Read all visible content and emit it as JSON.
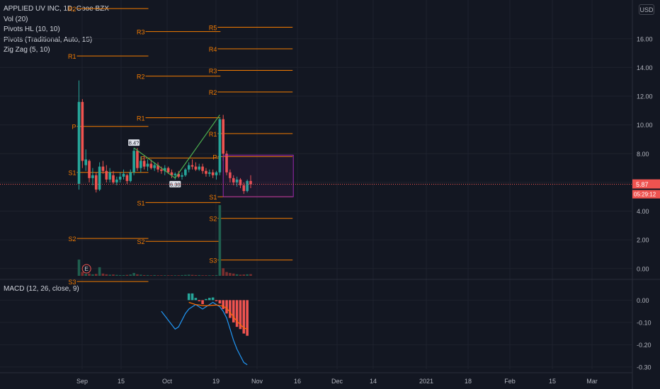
{
  "legend": {
    "symbol": "APPLIED UV INC, 1D, Cboe BZX",
    "vol": "Vol (20)",
    "pivots_hl": "Pivots HL (10, 10)",
    "pivots_trad": "Pivots (Traditional, Auto, 15)",
    "zigzag": "Zig Zag (5, 10)"
  },
  "macd_title": "MACD (12, 26, close, 9)",
  "currency": "USD",
  "price_tag": {
    "value": "5.87",
    "countdown": "05:29:12"
  },
  "colors": {
    "up": "#26a69a",
    "down": "#ef5350",
    "pivot": "#f57c00",
    "macd": "#2196f3",
    "signal": "#ff6d00",
    "zigzag": "#4caf50",
    "box": "#9c27b0"
  },
  "chart_data": [
    {
      "type": "candlestick",
      "ylim": [
        -0.7,
        18.6
      ],
      "x_ticks": [
        "Sep",
        "15",
        "Oct",
        "19",
        "Nov",
        "16",
        "Dec",
        "14",
        "2021",
        "18",
        "Feb",
        "15",
        "Mar"
      ],
      "y_ticks": [
        "16.00",
        "14.00",
        "12.00",
        "10.00",
        "8.00",
        "6.00",
        "4.00",
        "2.00",
        "0.00"
      ],
      "candles": [
        {
          "o": 5.9,
          "h": 13.1,
          "l": 5.5,
          "c": 11.6
        },
        {
          "o": 11.6,
          "h": 11.8,
          "l": 7.0,
          "c": 7.5
        },
        {
          "o": 7.2,
          "h": 8.3,
          "l": 6.8,
          "c": 7.6
        },
        {
          "o": 7.5,
          "h": 7.6,
          "l": 6.0,
          "c": 6.3
        },
        {
          "o": 6.3,
          "h": 7.0,
          "l": 5.8,
          "c": 6.5
        },
        {
          "o": 6.5,
          "h": 6.7,
          "l": 5.3,
          "c": 5.5
        },
        {
          "o": 5.5,
          "h": 7.4,
          "l": 5.4,
          "c": 7.1
        },
        {
          "o": 7.1,
          "h": 7.5,
          "l": 6.6,
          "c": 6.8
        },
        {
          "o": 6.8,
          "h": 7.2,
          "l": 6.0,
          "c": 6.2
        },
        {
          "o": 6.2,
          "h": 7.0,
          "l": 6.0,
          "c": 6.7
        },
        {
          "o": 6.5,
          "h": 6.8,
          "l": 5.9,
          "c": 6.0
        },
        {
          "o": 6.0,
          "h": 6.4,
          "l": 5.8,
          "c": 6.2
        },
        {
          "o": 6.2,
          "h": 6.7,
          "l": 6.0,
          "c": 6.4
        },
        {
          "o": 6.4,
          "h": 6.9,
          "l": 6.2,
          "c": 6.6
        },
        {
          "o": 6.5,
          "h": 6.6,
          "l": 5.9,
          "c": 6.1
        },
        {
          "o": 6.1,
          "h": 6.9,
          "l": 6.0,
          "c": 6.7
        },
        {
          "o": 6.7,
          "h": 8.4,
          "l": 6.5,
          "c": 8.2
        },
        {
          "o": 8.2,
          "h": 8.4,
          "l": 6.8,
          "c": 7.0
        },
        {
          "o": 7.0,
          "h": 7.8,
          "l": 6.7,
          "c": 7.5
        },
        {
          "o": 7.5,
          "h": 7.9,
          "l": 6.9,
          "c": 7.1
        },
        {
          "o": 7.1,
          "h": 7.6,
          "l": 6.8,
          "c": 7.3
        },
        {
          "o": 7.3,
          "h": 7.6,
          "l": 6.9,
          "c": 7.0
        },
        {
          "o": 7.0,
          "h": 7.4,
          "l": 6.8,
          "c": 7.2
        },
        {
          "o": 7.2,
          "h": 7.4,
          "l": 6.7,
          "c": 6.9
        },
        {
          "o": 6.9,
          "h": 7.1,
          "l": 6.6,
          "c": 6.8
        },
        {
          "o": 6.8,
          "h": 7.2,
          "l": 6.5,
          "c": 7.0
        },
        {
          "o": 7.0,
          "h": 7.1,
          "l": 6.6,
          "c": 6.7
        },
        {
          "o": 6.7,
          "h": 6.9,
          "l": 6.3,
          "c": 6.5
        },
        {
          "o": 6.5,
          "h": 6.7,
          "l": 6.2,
          "c": 6.6
        },
        {
          "o": 6.6,
          "h": 6.8,
          "l": 6.3,
          "c": 6.4
        },
        {
          "o": 6.4,
          "h": 6.7,
          "l": 6.2,
          "c": 6.5
        },
        {
          "o": 6.5,
          "h": 7.0,
          "l": 6.4,
          "c": 6.9
        },
        {
          "o": 6.9,
          "h": 7.4,
          "l": 6.7,
          "c": 7.2
        },
        {
          "o": 7.2,
          "h": 7.6,
          "l": 6.9,
          "c": 7.1
        },
        {
          "o": 7.1,
          "h": 7.4,
          "l": 6.8,
          "c": 6.9
        },
        {
          "o": 6.9,
          "h": 7.3,
          "l": 6.8,
          "c": 7.1
        },
        {
          "o": 7.1,
          "h": 7.3,
          "l": 6.6,
          "c": 6.8
        },
        {
          "o": 6.8,
          "h": 7.0,
          "l": 6.4,
          "c": 6.6
        },
        {
          "o": 6.6,
          "h": 6.9,
          "l": 6.4,
          "c": 6.7
        },
        {
          "o": 6.7,
          "h": 6.9,
          "l": 6.3,
          "c": 6.5
        },
        {
          "o": 6.5,
          "h": 6.8,
          "l": 6.2,
          "c": 6.7
        },
        {
          "o": 6.7,
          "h": 10.5,
          "l": 6.5,
          "c": 10.4
        },
        {
          "o": 10.4,
          "h": 10.7,
          "l": 7.5,
          "c": 8.0
        },
        {
          "o": 8.0,
          "h": 8.2,
          "l": 6.5,
          "c": 6.7
        },
        {
          "o": 6.7,
          "h": 6.9,
          "l": 6.0,
          "c": 6.3
        },
        {
          "o": 6.3,
          "h": 6.5,
          "l": 5.8,
          "c": 6.0
        },
        {
          "o": 6.0,
          "h": 6.4,
          "l": 5.7,
          "c": 6.2
        },
        {
          "o": 6.2,
          "h": 6.3,
          "l": 5.6,
          "c": 5.8
        },
        {
          "o": 5.8,
          "h": 6.0,
          "l": 5.2,
          "c": 5.4
        },
        {
          "o": 5.4,
          "h": 6.2,
          "l": 5.3,
          "c": 6.1
        },
        {
          "o": 6.1,
          "h": 6.5,
          "l": 5.6,
          "c": 5.87
        }
      ],
      "volume": [
        0.85,
        0.2,
        0.1,
        0.12,
        0.08,
        0.1,
        0.45,
        0.12,
        0.08,
        0.06,
        0.07,
        0.05,
        0.04,
        0.04,
        0.05,
        0.07,
        0.15,
        0.08,
        0.06,
        0.04,
        0.04,
        0.03,
        0.04,
        0.03,
        0.03,
        0.03,
        0.03,
        0.03,
        0.03,
        0.03,
        0.04,
        0.05,
        0.06,
        0.05,
        0.04,
        0.04,
        0.03,
        0.03,
        0.03,
        0.03,
        0.04,
        3.7,
        0.4,
        0.2,
        0.15,
        0.12,
        0.08,
        0.06,
        0.07,
        0.08,
        0.09
      ],
      "pivot_levels": [
        {
          "label": "R2",
          "x0": 0,
          "x1": 20,
          "y": 18.1
        },
        {
          "label": "R1",
          "x0": 0,
          "x1": 20,
          "y": 14.8
        },
        {
          "label": "P",
          "x0": 0,
          "x1": 20,
          "y": 9.9
        },
        {
          "label": "S1",
          "x0": 0,
          "x1": 20,
          "y": 6.7
        },
        {
          "label": "S2",
          "x0": 0,
          "x1": 20,
          "y": 2.1
        },
        {
          "label": "S3",
          "x0": 0,
          "x1": 20,
          "y": -0.9
        },
        {
          "label": "R3",
          "x0": 20,
          "x1": 41,
          "y": 16.5
        },
        {
          "label": "R2",
          "x0": 20,
          "x1": 41,
          "y": 13.4
        },
        {
          "label": "R1",
          "x0": 20,
          "x1": 41,
          "y": 10.5
        },
        {
          "label": "P",
          "x0": 20,
          "x1": 41,
          "y": 7.7
        },
        {
          "label": "S1",
          "x0": 20,
          "x1": 41,
          "y": 4.6
        },
        {
          "label": "S2",
          "x0": 20,
          "x1": 41,
          "y": 1.9
        },
        {
          "label": "R5",
          "x0": 41,
          "x1": 62,
          "y": 16.8
        },
        {
          "label": "R4",
          "x0": 41,
          "x1": 62,
          "y": 15.3
        },
        {
          "label": "R3",
          "x0": 41,
          "x1": 62,
          "y": 13.8
        },
        {
          "label": "R2",
          "x0": 41,
          "x1": 62,
          "y": 12.3
        },
        {
          "label": "R1",
          "x0": 41,
          "x1": 62,
          "y": 9.4
        },
        {
          "label": "P",
          "x0": 41,
          "x1": 62,
          "y": 7.8
        },
        {
          "label": "S1",
          "x0": 41,
          "x1": 62,
          "y": 5.0
        },
        {
          "label": "S2",
          "x0": 41,
          "x1": 62,
          "y": 3.5
        },
        {
          "label": "S3",
          "x0": 41,
          "x1": 62,
          "y": 0.6
        }
      ],
      "zigzag": [
        {
          "i": 16,
          "y": 8.4
        },
        {
          "i": 28,
          "y": 6.3
        },
        {
          "i": 41,
          "y": 10.7
        }
      ],
      "hl_labels": [
        {
          "i": 16,
          "y": 8.4,
          "text": "8.4?"
        },
        {
          "i": 28,
          "y": 6.3,
          "text": "6.30"
        }
      ],
      "earnings_marker": {
        "i": 2,
        "text": "E"
      },
      "box": {
        "i0": 42,
        "i1": 62,
        "y0": 5.0,
        "y1": 7.9
      }
    },
    {
      "type": "macd",
      "ylim": [
        -0.31,
        0.09
      ],
      "y_ticks": [
        "0.00",
        "-0.10",
        "-0.20",
        "-0.30"
      ],
      "start_index": 24,
      "macd": [
        -0.05,
        -0.07,
        -0.09,
        -0.11,
        -0.13,
        -0.12,
        -0.09,
        -0.06,
        -0.04,
        -0.03,
        -0.02,
        -0.03,
        -0.04,
        -0.03,
        -0.02,
        -0.01,
        -0.02,
        -0.03,
        -0.05,
        -0.08,
        -0.13,
        -0.18,
        -0.22,
        -0.25,
        -0.28,
        -0.29
      ],
      "signal": [
        null,
        null,
        null,
        null,
        null,
        null,
        null,
        null,
        -0.01,
        -0.015,
        -0.02,
        -0.022,
        -0.024,
        -0.025,
        -0.024,
        -0.023,
        -0.022,
        -0.024,
        -0.028,
        -0.036,
        -0.055,
        -0.075,
        -0.095,
        -0.11,
        -0.125,
        -0.13
      ],
      "histogram": [
        null,
        null,
        null,
        null,
        null,
        null,
        null,
        null,
        0.03,
        0.03,
        0.01,
        -0.005,
        -0.018,
        0.005,
        0.01,
        0.012,
        -0.005,
        -0.015,
        -0.04,
        -0.06,
        -0.08,
        -0.1,
        -0.12,
        -0.13,
        -0.15,
        -0.16
      ]
    }
  ]
}
